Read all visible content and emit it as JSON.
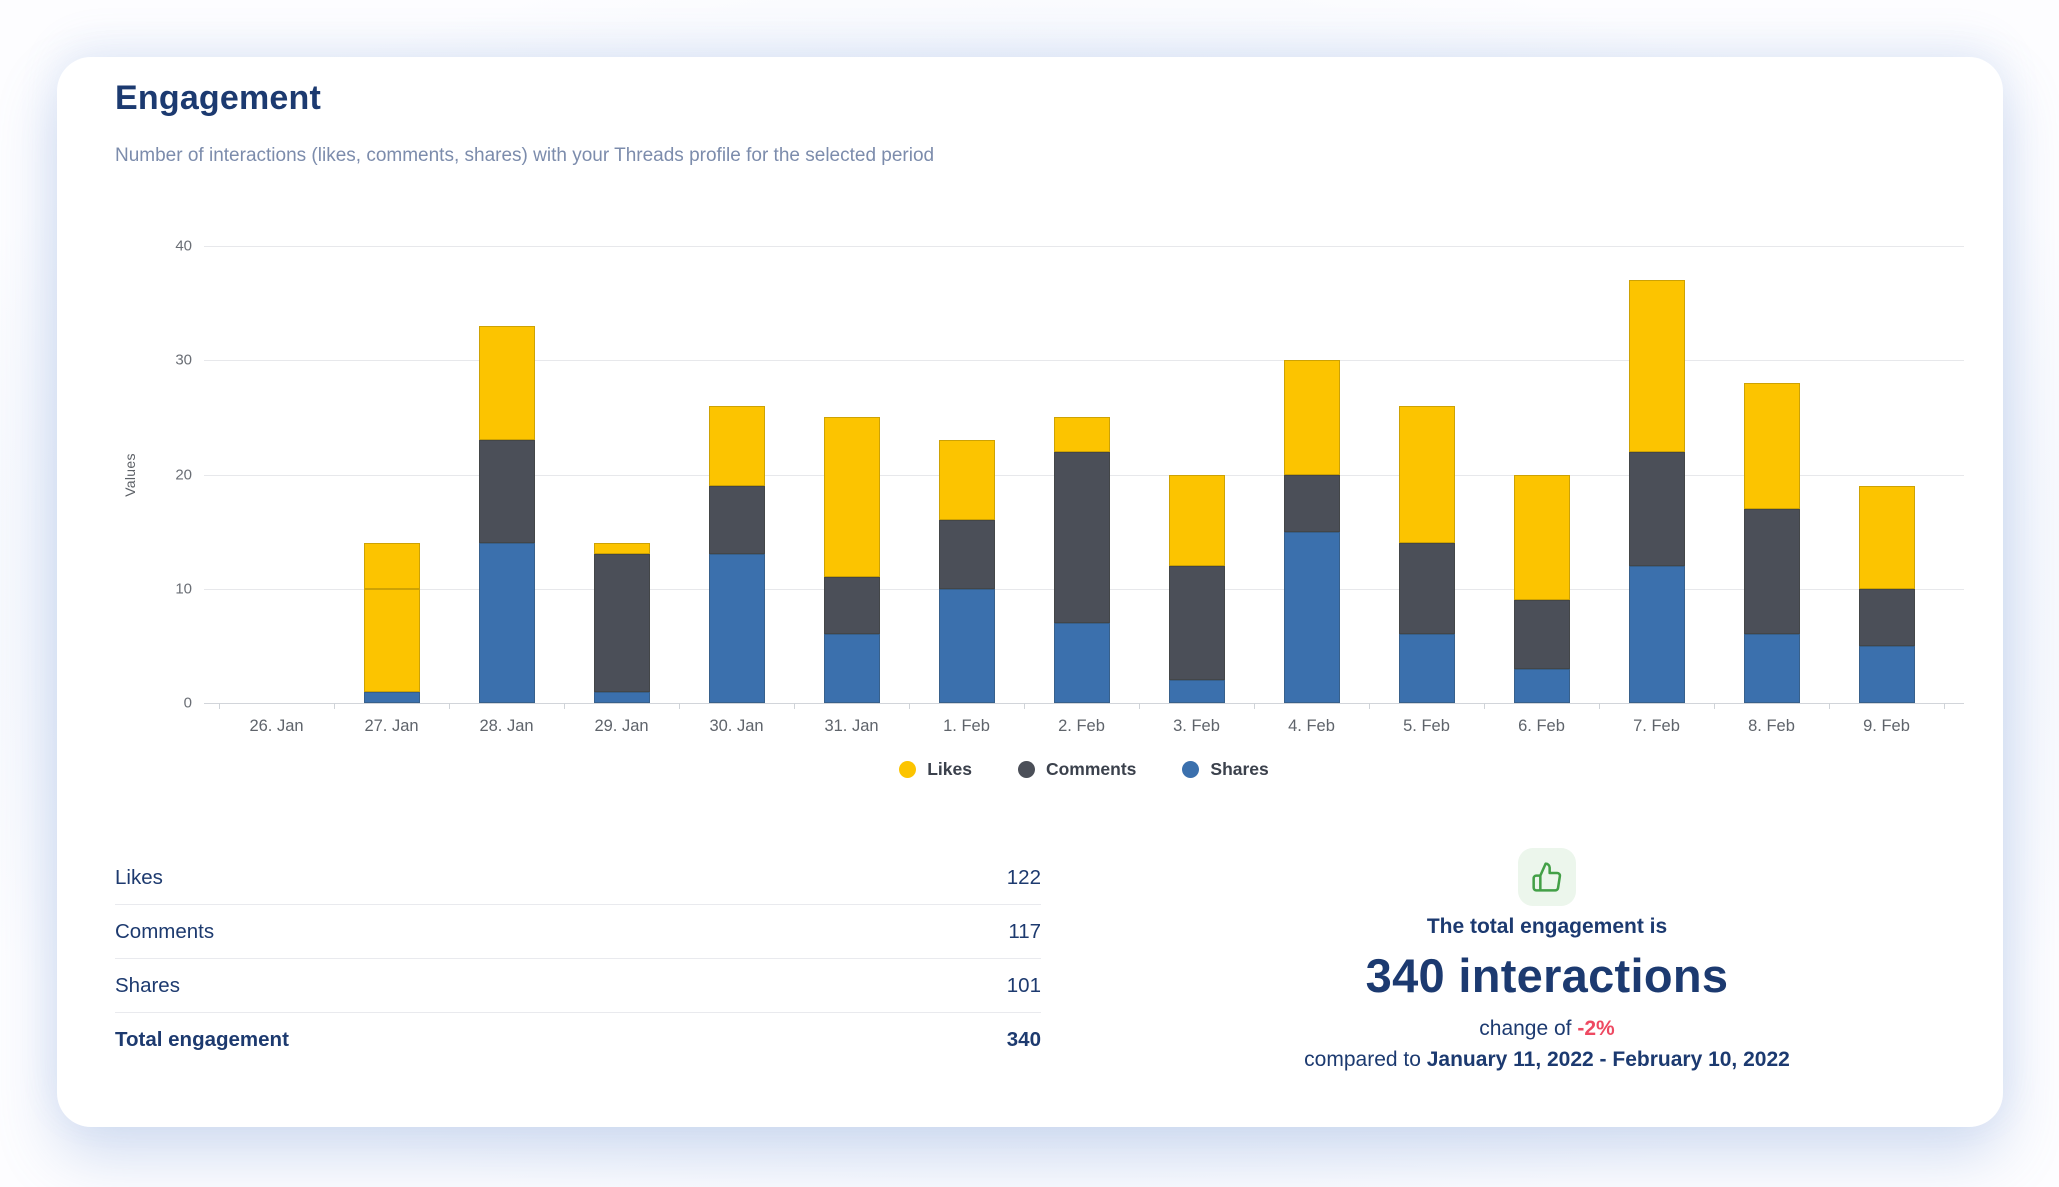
{
  "header": {
    "title": "Engagement",
    "subtitle": "Number of interactions (likes, comments, shares) with your Threads profile for the selected period"
  },
  "chart_data": {
    "type": "bar",
    "stacked": true,
    "y_axis_label": "Values",
    "ylim": [
      0,
      40
    ],
    "y_ticks": [
      0,
      10,
      20,
      30,
      40
    ],
    "grid": true,
    "legend_position": "bottom",
    "categories": [
      "26. Jan",
      "27. Jan",
      "28. Jan",
      "29. Jan",
      "30. Jan",
      "31. Jan",
      "1. Feb",
      "2. Feb",
      "3. Feb",
      "4. Feb",
      "5. Feb",
      "6. Feb",
      "7. Feb",
      "8. Feb",
      "9. Feb"
    ],
    "series": [
      {
        "name": "Likes",
        "color": "#FCC400",
        "values": [
          0,
          4,
          10,
          1,
          7,
          14,
          7,
          3,
          8,
          10,
          12,
          11,
          15,
          11,
          9
        ]
      },
      {
        "name": "Comments",
        "color": "#4B4F58",
        "values": [
          0,
          9,
          9,
          12,
          6,
          5,
          6,
          15,
          10,
          5,
          8,
          6,
          10,
          11,
          5
        ]
      },
      {
        "name": "Shares",
        "color": "#3B70AD",
        "values": [
          0,
          1,
          14,
          1,
          13,
          6,
          10,
          7,
          2,
          15,
          6,
          3,
          12,
          6,
          5
        ]
      }
    ],
    "stack_order_bottom_to_top": [
      "Shares",
      "Comments",
      "Likes"
    ],
    "color_overrides": [
      {
        "category": "27. Jan",
        "series": "Comments",
        "color": "#FCC400"
      }
    ]
  },
  "summary_table": {
    "rows": [
      {
        "label": "Likes",
        "value": "122",
        "emphasis": false
      },
      {
        "label": "Comments",
        "value": "117",
        "emphasis": false
      },
      {
        "label": "Shares",
        "value": "101",
        "emphasis": false
      },
      {
        "label": "Total engagement",
        "value": "340",
        "emphasis": true
      }
    ]
  },
  "summary_panel": {
    "icon": "thumbs-up-icon",
    "icon_color": "#43A047",
    "line1": "The total engagement is",
    "headline": "340 interactions",
    "change_prefix": "change of ",
    "change_value": "-2%",
    "change_color": "#EE4961",
    "compare_prefix": "compared to ",
    "compare_range": "January 11, 2022 - February 10, 2022"
  }
}
